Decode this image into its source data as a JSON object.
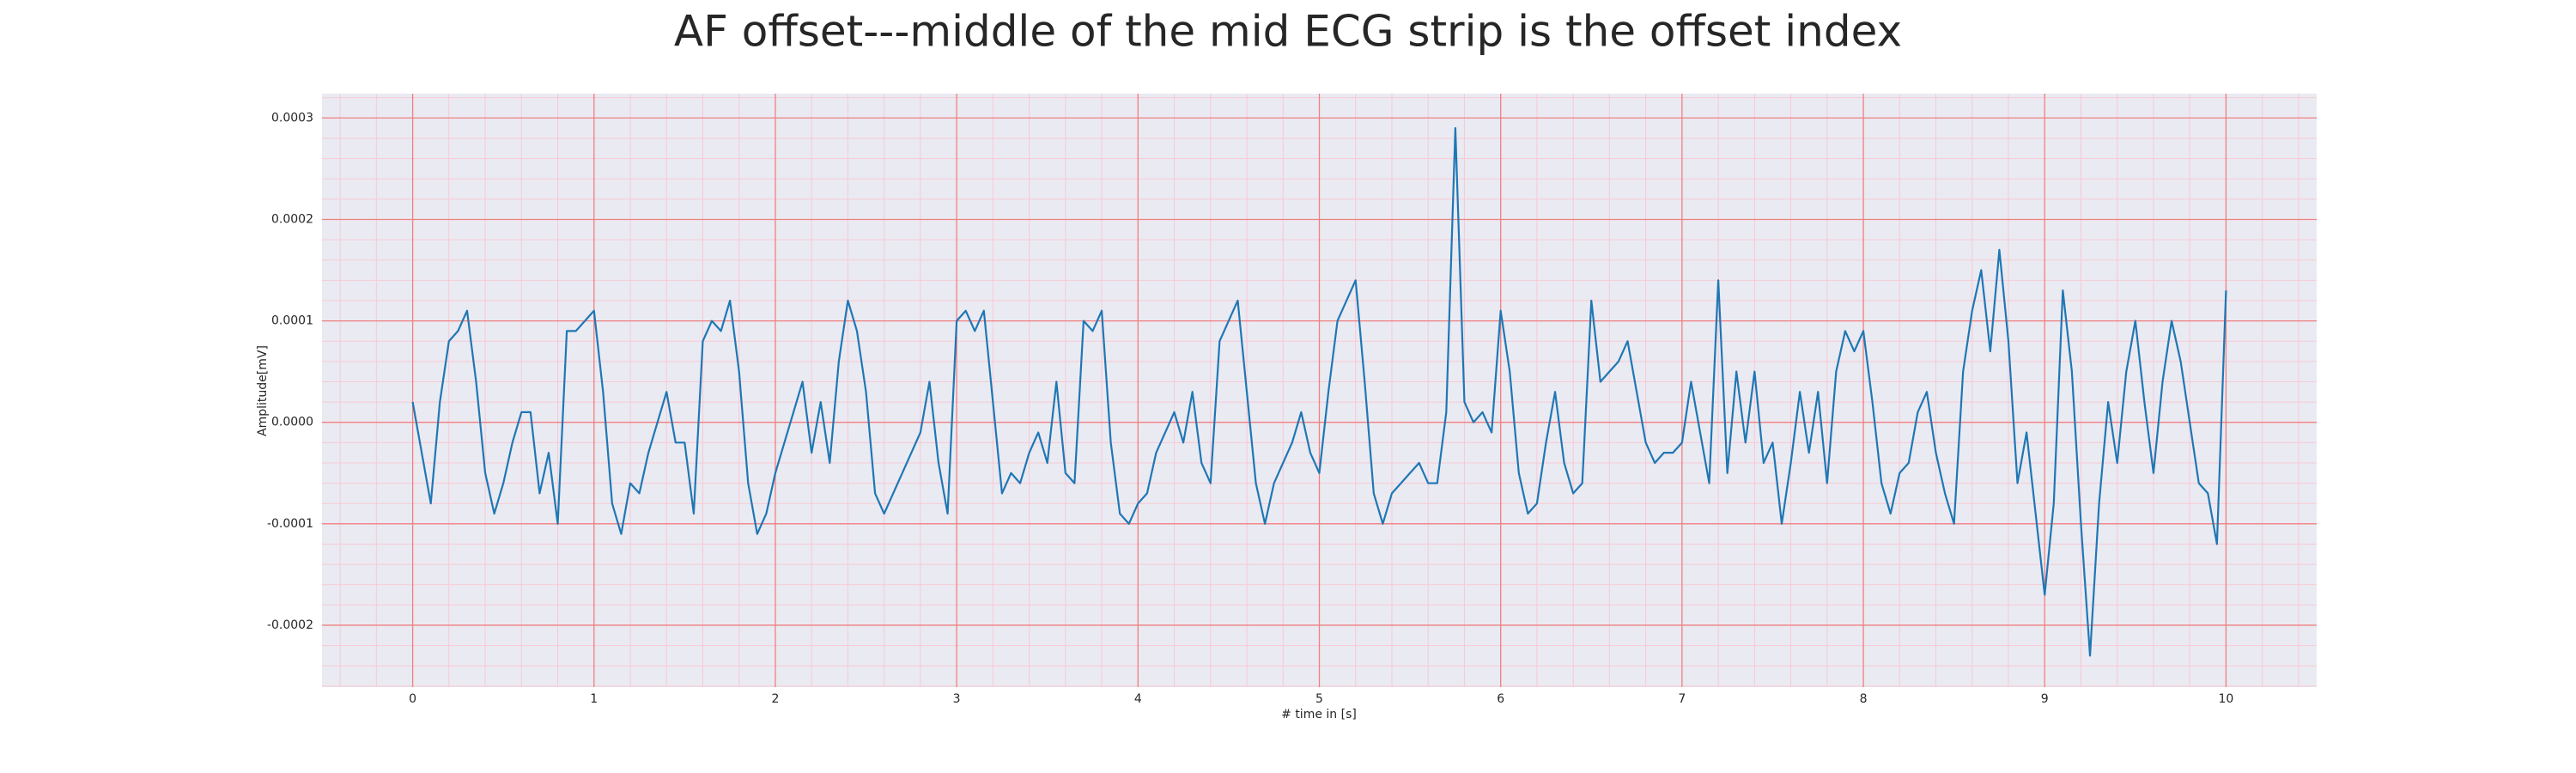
{
  "chart_data": {
    "type": "line",
    "title": "AF offset---middle of the mid ECG strip is the offset index",
    "x_label": "# time in [s]",
    "y_label": "Amplitude[mV]",
    "xlim": [
      -0.5,
      10.5
    ],
    "ylim": [
      -0.000261,
      0.000324
    ],
    "xticks": [
      0,
      1,
      2,
      3,
      4,
      5,
      6,
      7,
      8,
      9,
      10
    ],
    "yticks": [
      -0.0002,
      -0.0001,
      {
        "value": 0,
        "label": "0.0000"
      },
      0.0001,
      0.0002,
      0.0003
    ],
    "grid": true,
    "minor_grid": true,
    "background": "#eaeaf2",
    "grid_color": "#f08080",
    "minor_grid_color": "#f7c9d4",
    "series": [
      {
        "color": "#1f77b4",
        "x": [
          0,
          0.05,
          0.1,
          0.15,
          0.2,
          0.25,
          0.3,
          0.35,
          0.4,
          0.45,
          0.5,
          0.55,
          0.6,
          0.65,
          0.7,
          0.75,
          0.8,
          0.85,
          0.9,
          0.95,
          1,
          1.05,
          1.1,
          1.15,
          1.2,
          1.25,
          1.3,
          1.35,
          1.4,
          1.45,
          1.5,
          1.55,
          1.6,
          1.65,
          1.7,
          1.75,
          1.8,
          1.85,
          1.9,
          1.95,
          2,
          2.05,
          2.1,
          2.15,
          2.2,
          2.25,
          2.3,
          2.35,
          2.4,
          2.45,
          2.5,
          2.55,
          2.6,
          2.65,
          2.7,
          2.75,
          2.8,
          2.85,
          2.9,
          2.95,
          3,
          3.05,
          3.1,
          3.15,
          3.2,
          3.25,
          3.3,
          3.35,
          3.4,
          3.45,
          3.5,
          3.55,
          3.6,
          3.65,
          3.7,
          3.75,
          3.8,
          3.85,
          3.9,
          3.95,
          4,
          4.05,
          4.1,
          4.15,
          4.2,
          4.25,
          4.3,
          4.35,
          4.4,
          4.45,
          4.5,
          4.55,
          4.6,
          4.65,
          4.7,
          4.75,
          4.8,
          4.85,
          4.9,
          4.95,
          5,
          5.05,
          5.1,
          5.15,
          5.2,
          5.25,
          5.3,
          5.35,
          5.4,
          5.45,
          5.5,
          5.55,
          5.6,
          5.65,
          5.7,
          5.75,
          5.8,
          5.85,
          5.9,
          5.95,
          6,
          6.05,
          6.1,
          6.15,
          6.2,
          6.25,
          6.3,
          6.35,
          6.4,
          6.45,
          6.5,
          6.55,
          6.6,
          6.65,
          6.7,
          6.75,
          6.8,
          6.85,
          6.9,
          6.95,
          7,
          7.05,
          7.1,
          7.15,
          7.2,
          7.25,
          7.3,
          7.35,
          7.4,
          7.45,
          7.5,
          7.55,
          7.6,
          7.65,
          7.7,
          7.75,
          7.8,
          7.85,
          7.9,
          7.95,
          8,
          8.05,
          8.1,
          8.15,
          8.2,
          8.25,
          8.3,
          8.35,
          8.4,
          8.45,
          8.5,
          8.55,
          8.6,
          8.65,
          8.7,
          8.75,
          8.8,
          8.85,
          8.9,
          8.95,
          9,
          9.05,
          9.1,
          9.15,
          9.2,
          9.25,
          9.3,
          9.35,
          9.4,
          9.45,
          9.5,
          9.55,
          9.6,
          9.65,
          9.7,
          9.75,
          9.8,
          9.85,
          9.9,
          9.95,
          10
        ],
        "values": [
          2e-05,
          -3e-05,
          -8e-05,
          2e-05,
          8e-05,
          9e-05,
          0.00011,
          4e-05,
          -5e-05,
          -9e-05,
          -6e-05,
          -2e-05,
          1e-05,
          1e-05,
          -7e-05,
          -3e-05,
          -0.0001,
          9e-05,
          9e-05,
          0.0001,
          0.00011,
          3e-05,
          -8e-05,
          -0.00011,
          -6e-05,
          -7e-05,
          -3e-05,
          0,
          3e-05,
          -2e-05,
          -2e-05,
          -9e-05,
          8e-05,
          0.0001,
          9e-05,
          0.00012,
          5e-05,
          -6e-05,
          -0.00011,
          -9e-05,
          -5e-05,
          -2e-05,
          1e-05,
          4e-05,
          -3e-05,
          2e-05,
          -4e-05,
          6e-05,
          0.00012,
          9e-05,
          3e-05,
          -7e-05,
          -9e-05,
          -7e-05,
          -5e-05,
          -3e-05,
          -1e-05,
          4e-05,
          -4e-05,
          -9e-05,
          0.0001,
          0.00011,
          9e-05,
          0.00011,
          2e-05,
          -7e-05,
          -5e-05,
          -6e-05,
          -3e-05,
          -1e-05,
          -4e-05,
          4e-05,
          -5e-05,
          -6e-05,
          0.0001,
          9e-05,
          0.00011,
          -2e-05,
          -9e-05,
          -0.0001,
          -8e-05,
          -7e-05,
          -3e-05,
          -1e-05,
          1e-05,
          -2e-05,
          3e-05,
          -4e-05,
          -6e-05,
          8e-05,
          0.0001,
          0.00012,
          3e-05,
          -6e-05,
          -0.0001,
          -6e-05,
          -4e-05,
          -2e-05,
          1e-05,
          -3e-05,
          -5e-05,
          3e-05,
          0.0001,
          0.00012,
          0.00014,
          4e-05,
          -7e-05,
          -0.0001,
          -7e-05,
          -6e-05,
          -5e-05,
          -4e-05,
          -6e-05,
          -6e-05,
          1e-05,
          0.00029,
          2e-05,
          0,
          1e-05,
          -1e-05,
          0.00011,
          5e-05,
          -5e-05,
          -9e-05,
          -8e-05,
          -2e-05,
          3e-05,
          -4e-05,
          -7e-05,
          -6e-05,
          0.00012,
          4e-05,
          5e-05,
          6e-05,
          8e-05,
          3e-05,
          -2e-05,
          -4e-05,
          -3e-05,
          -3e-05,
          -2e-05,
          4e-05,
          -1e-05,
          -6e-05,
          0.00014,
          -5e-05,
          5e-05,
          -2e-05,
          5e-05,
          -4e-05,
          -2e-05,
          -0.0001,
          -4e-05,
          3e-05,
          -3e-05,
          3e-05,
          -6e-05,
          5e-05,
          9e-05,
          7e-05,
          9e-05,
          2e-05,
          -6e-05,
          -9e-05,
          -5e-05,
          -4e-05,
          1e-05,
          3e-05,
          -3e-05,
          -7e-05,
          -0.0001,
          5e-05,
          0.00011,
          0.00015,
          7e-05,
          0.00017,
          8e-05,
          -6e-05,
          -1e-05,
          -9e-05,
          -0.00017,
          -8e-05,
          0.00013,
          5e-05,
          -0.0001,
          -0.00023,
          -8e-05,
          2e-05,
          -4e-05,
          5e-05,
          0.0001,
          2e-05,
          -5e-05,
          4e-05,
          0.0001,
          6e-05,
          0,
          -6e-05,
          -7e-05,
          -0.00012,
          0.00013
        ]
      }
    ]
  }
}
